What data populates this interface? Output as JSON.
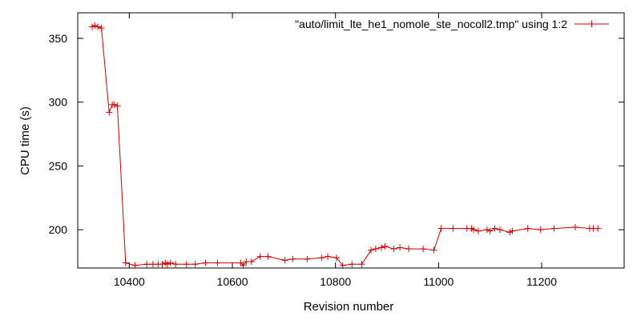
{
  "chart_data": {
    "type": "line",
    "title": "",
    "xlabel": "Revision number",
    "ylabel": "CPU time (s)",
    "xlim": [
      10300,
      11360
    ],
    "ylim": [
      170,
      370
    ],
    "x_ticks": [
      10400,
      10600,
      10800,
      11000,
      11200
    ],
    "y_ticks": [
      200,
      250,
      300,
      350
    ],
    "grid": false,
    "legend_position": "top-right",
    "colors": {
      "series": "#cc0000",
      "axes": "#000000",
      "background": "#ffffff"
    },
    "series": [
      {
        "name": "\"auto/limit_lte_he1_nomole_ste_nocoll2.tmp\" using 1:2",
        "marker": "plus",
        "x": [
          10328,
          10333,
          10339,
          10346,
          10361,
          10367,
          10371,
          10377,
          10393,
          10411,
          10434,
          10446,
          10456,
          10464,
          10470,
          10474,
          10480,
          10490,
          10511,
          10528,
          10548,
          10571,
          10616,
          10621,
          10627,
          10637,
          10654,
          10669,
          10702,
          10717,
          10745,
          10773,
          10785,
          10802,
          10814,
          10832,
          10851,
          10869,
          10878,
          10889,
          10896,
          10913,
          10925,
          10942,
          10970,
          10991,
          11005,
          11028,
          11055,
          11064,
          11068,
          11077,
          11094,
          11100,
          11109,
          11119,
          11138,
          11143,
          11173,
          11198,
          11224,
          11265,
          11293,
          11300,
          11309
        ],
        "y": [
          359,
          360,
          359,
          358,
          292,
          298,
          298,
          297,
          174,
          172,
          173,
          173,
          173,
          173,
          174,
          173,
          174,
          173,
          173,
          173,
          174,
          174,
          174,
          172,
          175,
          175,
          179,
          179,
          176,
          177,
          177,
          178,
          179,
          178,
          172,
          173,
          173,
          184,
          185,
          186,
          187,
          185,
          186,
          185,
          185,
          184,
          201,
          201,
          201,
          201,
          200,
          199,
          200,
          199,
          201,
          200,
          198,
          199,
          201,
          200,
          201,
          202,
          201,
          201,
          201
        ]
      }
    ]
  }
}
